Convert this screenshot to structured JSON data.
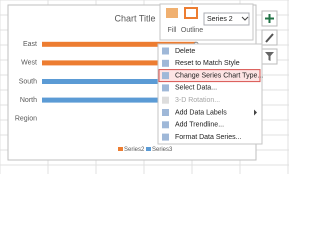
{
  "chart_data": {
    "type": "bar",
    "orientation": "horizontal",
    "title": "Chart Title",
    "categories": [
      "East",
      "West",
      "South",
      "North",
      "Region"
    ],
    "series": [
      {
        "name": "Series2",
        "color": "#ed7d31",
        "values": [
          82,
          82,
          null,
          null,
          null
        ]
      },
      {
        "name": "Series3",
        "color": "#5b9bd5",
        "values": [
          null,
          null,
          82,
          82,
          null
        ]
      }
    ],
    "xlim": [
      0,
      100
    ]
  },
  "toolbar": {
    "fill": "Fill",
    "outline": "Outline",
    "series_select": "Series 2"
  },
  "menu": {
    "items": [
      {
        "label": "Delete",
        "enabled": true
      },
      {
        "label": "Reset to Match Style",
        "enabled": true
      },
      {
        "label": "Change Series Chart Type...",
        "enabled": true,
        "highlighted": true
      },
      {
        "label": "Select Data...",
        "enabled": true
      },
      {
        "label": "3-D Rotation...",
        "enabled": false
      },
      {
        "label": "Add Data Labels",
        "enabled": true,
        "submenu": true
      },
      {
        "label": "Add Trendline...",
        "enabled": true
      },
      {
        "label": "Format Data Series...",
        "enabled": true
      }
    ]
  }
}
